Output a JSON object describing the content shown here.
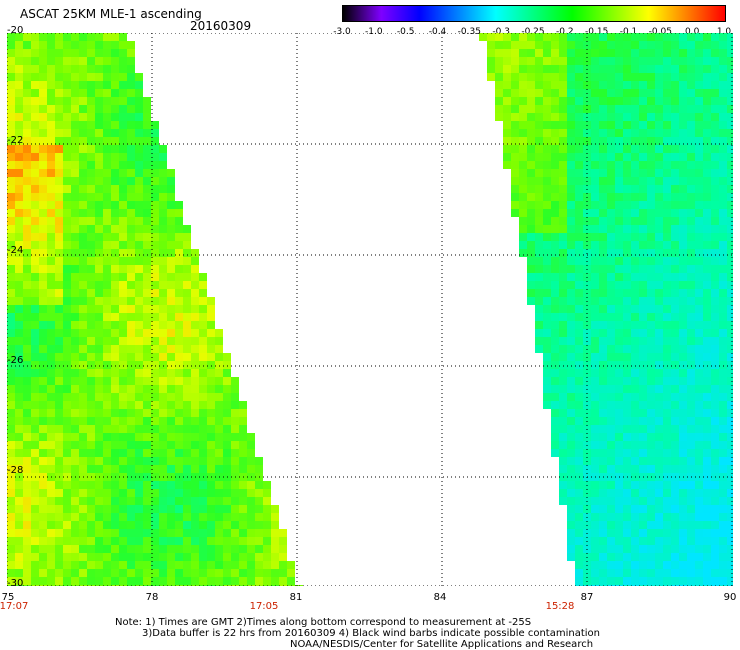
{
  "header": {
    "title": "ASCAT 25KM MLE-1 ascending",
    "date": "20160309"
  },
  "colorbar": {
    "labels": [
      "-3.0",
      "-1.0",
      "-0.5",
      "-0.4",
      "-0.35",
      "-0.3",
      "-0.25",
      "-0.2",
      "-0.15",
      "-0.1",
      "-0.05",
      "0.0",
      "1.0"
    ],
    "colors": [
      "#000000",
      "#7f00ff",
      "#0000ff",
      "#0080ff",
      "#00ffff",
      "#00ff80",
      "#00ff00",
      "#80ff00",
      "#ffff00",
      "#ff8000",
      "#ff0000"
    ]
  },
  "map": {
    "lat_labels": [
      "-20",
      "-22",
      "-24",
      "-26",
      "-28",
      "-30"
    ],
    "lon_labels": [
      "75",
      "78",
      "81",
      "84",
      "87",
      "90"
    ],
    "time_labels": [
      "17:07",
      "17:05",
      "15:28"
    ],
    "no_data_color": "#ffffff",
    "grid_style": "dotted"
  },
  "notes": {
    "line1": "Note: 1) Times are GMT 2)Times along bottom correspond to measurement at -25S",
    "line2": "3)Data buffer is 22 hrs from 20160309 4) Black wind barbs indicate possible contamination",
    "line3": "NOAA/NESDIS/Center for Satellite Applications and Research"
  }
}
